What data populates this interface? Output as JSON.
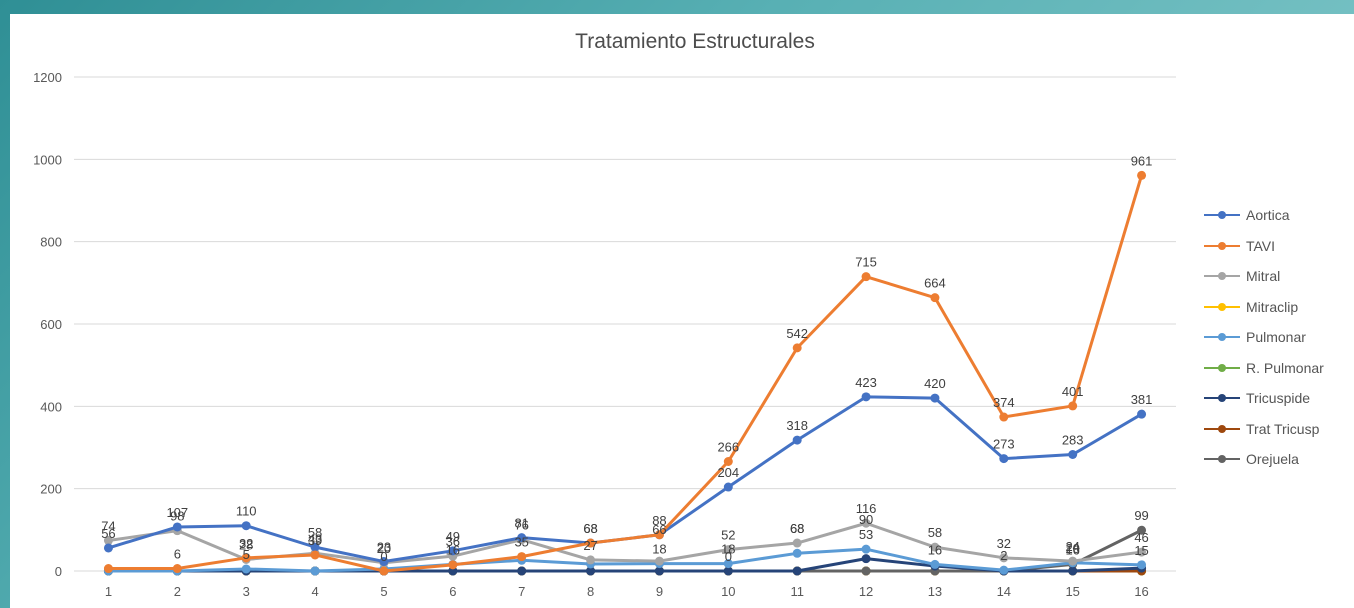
{
  "chart_data": {
    "type": "line",
    "title": "Tratamiento Estructurales",
    "xlabel": "",
    "ylabel": "",
    "x": [
      1,
      2,
      3,
      4,
      5,
      6,
      7,
      8,
      9,
      10,
      11,
      12,
      13,
      14,
      15,
      16
    ],
    "ylim": [
      0,
      1200
    ],
    "yticks": [
      0,
      200,
      400,
      600,
      800,
      1000,
      1200
    ],
    "grid": true,
    "legend_position": "right",
    "series": [
      {
        "name": "Aortica",
        "color": "#4472c4",
        "values": [
          56,
          107,
          110,
          58,
          23,
          49,
          81,
          68,
          88,
          204,
          318,
          423,
          420,
          273,
          283,
          381
        ]
      },
      {
        "name": "TAVI",
        "color": "#ed7d31",
        "values": [
          6,
          6,
          32,
          39,
          0,
          15,
          35,
          68,
          88,
          266,
          542,
          715,
          664,
          374,
          401,
          961
        ]
      },
      {
        "name": "Mitral",
        "color": "#a5a5a5",
        "values": [
          74,
          98,
          28,
          43,
          20,
          36,
          76,
          27,
          24,
          52,
          68,
          116,
          58,
          32,
          24,
          46
        ]
      },
      {
        "name": "Mitraclip",
        "color": "#ffc000",
        "values": [
          0,
          0,
          0,
          0,
          0,
          0,
          0,
          0,
          0,
          0,
          0,
          0,
          0,
          0,
          0,
          0
        ]
      },
      {
        "name": "Pulmonar",
        "color": "#5b9bd5",
        "values": [
          0,
          0,
          5,
          0,
          5,
          16,
          26,
          17,
          18,
          18,
          43,
          53,
          16,
          2,
          20,
          15
        ]
      },
      {
        "name": "R. Pulmonar",
        "color": "#70ad47",
        "values": [
          0,
          0,
          0,
          0,
          0,
          0,
          0,
          0,
          0,
          0,
          0,
          0,
          0,
          0,
          0,
          0
        ]
      },
      {
        "name": "Tricuspide",
        "color": "#264478",
        "values": [
          0,
          0,
          0,
          0,
          0,
          0,
          0,
          0,
          0,
          0,
          0,
          30,
          12,
          0,
          0,
          7
        ]
      },
      {
        "name": "Trat Tricusp",
        "color": "#9e480e",
        "values": [
          0,
          0,
          0,
          0,
          0,
          0,
          0,
          0,
          0,
          0,
          0,
          0,
          0,
          0,
          0,
          0
        ]
      },
      {
        "name": "Orejuela",
        "color": "#636363",
        "values": [
          0,
          0,
          0,
          0,
          0,
          0,
          0,
          0,
          0,
          0,
          0,
          0,
          0,
          0,
          16,
          99
        ]
      }
    ],
    "data_labels": [
      {
        "x": 1,
        "text": "74",
        "y": 74
      },
      {
        "x": 1,
        "text": "56",
        "y": 56
      },
      {
        "x": 2,
        "text": "107",
        "y": 107
      },
      {
        "x": 2,
        "text": "98",
        "y": 98
      },
      {
        "x": 2,
        "text": "6",
        "y": 6
      },
      {
        "x": 3,
        "text": "110",
        "y": 110
      },
      {
        "x": 3,
        "text": "32",
        "y": 32
      },
      {
        "x": 3,
        "text": "28",
        "y": 28
      },
      {
        "x": 3,
        "text": "5",
        "y": 5
      },
      {
        "x": 4,
        "text": "58",
        "y": 58
      },
      {
        "x": 4,
        "text": "43",
        "y": 43
      },
      {
        "x": 4,
        "text": "39",
        "y": 39
      },
      {
        "x": 5,
        "text": "23",
        "y": 23
      },
      {
        "x": 5,
        "text": "20",
        "y": 20
      },
      {
        "x": 5,
        "text": "0",
        "y": 0
      },
      {
        "x": 6,
        "text": "49",
        "y": 49
      },
      {
        "x": 6,
        "text": "36",
        "y": 36
      },
      {
        "x": 6,
        "text": "16",
        "y": 16
      },
      {
        "x": 7,
        "text": "81",
        "y": 81
      },
      {
        "x": 7,
        "text": "76",
        "y": 76
      },
      {
        "x": 7,
        "text": "35",
        "y": 35
      },
      {
        "x": 8,
        "text": "68",
        "y": 68
      },
      {
        "x": 8,
        "text": "68",
        "y": 68
      },
      {
        "x": 8,
        "text": "27",
        "y": 27
      },
      {
        "x": 9,
        "text": "88",
        "y": 88
      },
      {
        "x": 9,
        "text": "66",
        "y": 66
      },
      {
        "x": 9,
        "text": "18",
        "y": 18
      },
      {
        "x": 10,
        "text": "266",
        "y": 266
      },
      {
        "x": 10,
        "text": "204",
        "y": 204
      },
      {
        "x": 10,
        "text": "52",
        "y": 52
      },
      {
        "x": 10,
        "text": "18",
        "y": 18
      },
      {
        "x": 10,
        "text": "0",
        "y": 0
      },
      {
        "x": 11,
        "text": "542",
        "y": 542
      },
      {
        "x": 11,
        "text": "318",
        "y": 318
      },
      {
        "x": 11,
        "text": "68",
        "y": 68
      },
      {
        "x": 11,
        "text": "68",
        "y": 68
      },
      {
        "x": 12,
        "text": "715",
        "y": 715
      },
      {
        "x": 12,
        "text": "423",
        "y": 423
      },
      {
        "x": 12,
        "text": "116",
        "y": 116
      },
      {
        "x": 12,
        "text": "90",
        "y": 90
      },
      {
        "x": 12,
        "text": "53",
        "y": 53
      },
      {
        "x": 13,
        "text": "664",
        "y": 664
      },
      {
        "x": 13,
        "text": "420",
        "y": 420
      },
      {
        "x": 13,
        "text": "58",
        "y": 58
      },
      {
        "x": 13,
        "text": "16",
        "y": 16
      },
      {
        "x": 14,
        "text": "374",
        "y": 374
      },
      {
        "x": 14,
        "text": "273",
        "y": 273
      },
      {
        "x": 14,
        "text": "32",
        "y": 32
      },
      {
        "x": 14,
        "text": "2",
        "y": 2
      },
      {
        "x": 15,
        "text": "401",
        "y": 401
      },
      {
        "x": 15,
        "text": "283",
        "y": 283
      },
      {
        "x": 15,
        "text": "24",
        "y": 24
      },
      {
        "x": 15,
        "text": "20",
        "y": 20
      },
      {
        "x": 15,
        "text": "16",
        "y": 16
      },
      {
        "x": 16,
        "text": "961",
        "y": 961
      },
      {
        "x": 16,
        "text": "381",
        "y": 381
      },
      {
        "x": 16,
        "text": "99",
        "y": 99
      },
      {
        "x": 16,
        "text": "46",
        "y": 46
      },
      {
        "x": 16,
        "text": "15",
        "y": 15
      }
    ]
  }
}
